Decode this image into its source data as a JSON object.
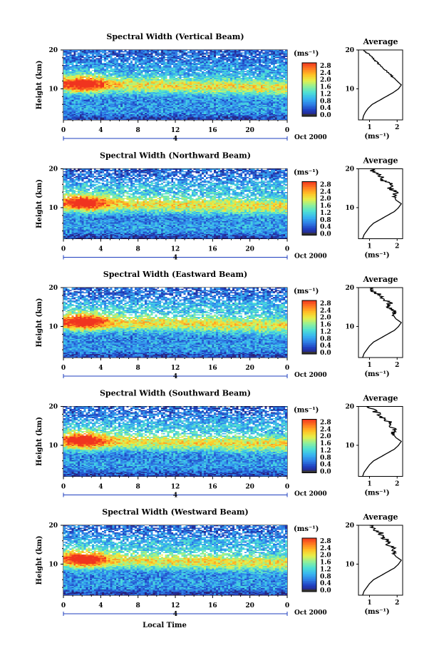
{
  "chart_data": [
    {
      "type": "heatmap",
      "title": "Spectral Width (Vertical Beam)",
      "ylabel": "Height (km)",
      "x_ticks": [
        "0",
        "4",
        "8",
        "12",
        "16",
        "20",
        "0"
      ],
      "xlim": [
        0,
        24
      ],
      "ylim": [
        2,
        20
      ],
      "y_ticks": [
        "20",
        "10"
      ],
      "date_label": "Oct 2000",
      "day_marker": "4",
      "colorbar": {
        "unit": "(ms⁻¹)",
        "ticks": [
          "2.8",
          "2.4",
          "2.0",
          "1.6",
          "1.2",
          "0.8",
          "0.4",
          "0.0"
        ],
        "range": [
          0,
          3.0
        ]
      },
      "average": {
        "title": "Average",
        "xlabel": "(ms⁻¹)",
        "x_ticks": [
          "1",
          "2"
        ],
        "xlim": [
          0.6,
          2.2
        ],
        "y_ticks": [
          "20",
          "10"
        ],
        "profile": [
          [
            2,
            0.75
          ],
          [
            3,
            0.78
          ],
          [
            4,
            0.85
          ],
          [
            5,
            0.95
          ],
          [
            6,
            1.1
          ],
          [
            7,
            1.35
          ],
          [
            8,
            1.6
          ],
          [
            9,
            1.85
          ],
          [
            10,
            2.05
          ],
          [
            11,
            2.15
          ],
          [
            12,
            2.0
          ],
          [
            13,
            1.85
          ],
          [
            14,
            1.7
          ],
          [
            15,
            1.55
          ],
          [
            16,
            1.4
          ],
          [
            17,
            1.25
          ],
          [
            18,
            1.1
          ],
          [
            19,
            0.95
          ],
          [
            20,
            0.8
          ]
        ]
      }
    },
    {
      "type": "heatmap",
      "title": "Spectral Width (Northward Beam)",
      "ylabel": "Height (km)",
      "x_ticks": [
        "0",
        "4",
        "8",
        "12",
        "16",
        "20",
        "0"
      ],
      "xlim": [
        0,
        24
      ],
      "ylim": [
        2,
        20
      ],
      "y_ticks": [
        "20",
        "10"
      ],
      "date_label": "Oct 2000",
      "day_marker": "4",
      "colorbar": {
        "unit": "(ms⁻¹)",
        "ticks": [
          "2.8",
          "2.4",
          "2.0",
          "1.6",
          "1.2",
          "0.8",
          "0.4",
          "0.0"
        ],
        "range": [
          0,
          3.0
        ]
      },
      "average": {
        "title": "Average",
        "xlabel": "(ms⁻¹)",
        "x_ticks": [
          "1",
          "2"
        ],
        "xlim": [
          0.6,
          2.2
        ],
        "y_ticks": [
          "20",
          "10"
        ],
        "profile": [
          [
            2,
            0.75
          ],
          [
            3,
            0.8
          ],
          [
            4,
            0.9
          ],
          [
            5,
            1.0
          ],
          [
            6,
            1.15
          ],
          [
            7,
            1.4
          ],
          [
            8,
            1.65
          ],
          [
            9,
            1.9
          ],
          [
            10,
            2.05
          ],
          [
            11,
            2.15
          ],
          [
            12,
            1.95
          ],
          [
            13,
            1.9
          ],
          [
            14,
            1.95
          ],
          [
            15,
            1.75
          ],
          [
            16,
            1.8
          ],
          [
            17,
            1.5
          ],
          [
            18,
            1.45
          ],
          [
            19,
            1.2
          ],
          [
            20,
            1.05
          ]
        ]
      }
    },
    {
      "type": "heatmap",
      "title": "Spectral Width (Eastward Beam)",
      "ylabel": "Height (km)",
      "x_ticks": [
        "0",
        "4",
        "8",
        "12",
        "16",
        "20",
        "0"
      ],
      "xlim": [
        0,
        24
      ],
      "ylim": [
        2,
        20
      ],
      "y_ticks": [
        "20",
        "10"
      ],
      "date_label": "Oct 2000",
      "day_marker": "4",
      "colorbar": {
        "unit": "(ms⁻¹)",
        "ticks": [
          "2.8",
          "2.4",
          "2.0",
          "1.6",
          "1.2",
          "0.8",
          "0.4",
          "0.0"
        ],
        "range": [
          0,
          3.0
        ]
      },
      "average": {
        "title": "Average",
        "xlabel": "(ms⁻¹)",
        "x_ticks": [
          "1",
          "2"
        ],
        "xlim": [
          0.6,
          2.2
        ],
        "y_ticks": [
          "20",
          "10"
        ],
        "profile": [
          [
            2,
            0.75
          ],
          [
            3,
            0.8
          ],
          [
            4,
            0.9
          ],
          [
            5,
            1.0
          ],
          [
            6,
            1.15
          ],
          [
            7,
            1.4
          ],
          [
            8,
            1.65
          ],
          [
            9,
            1.9
          ],
          [
            10,
            2.05
          ],
          [
            11,
            2.15
          ],
          [
            12,
            1.95
          ],
          [
            13,
            1.85
          ],
          [
            14,
            1.9
          ],
          [
            15,
            1.7
          ],
          [
            16,
            1.75
          ],
          [
            17,
            1.45
          ],
          [
            18,
            1.4
          ],
          [
            19,
            1.15
          ],
          [
            20,
            1.0
          ]
        ]
      }
    },
    {
      "type": "heatmap",
      "title": "Spectral Width (Southward Beam)",
      "ylabel": "Height (km)",
      "x_ticks": [
        "0",
        "4",
        "8",
        "12",
        "16",
        "20",
        "0"
      ],
      "xlim": [
        0,
        24
      ],
      "ylim": [
        2,
        20
      ],
      "y_ticks": [
        "20",
        "10"
      ],
      "date_label": "Oct 2000",
      "day_marker": "4",
      "colorbar": {
        "unit": "(ms⁻¹)",
        "ticks": [
          "2.8",
          "2.4",
          "2.0",
          "1.6",
          "1.2",
          "0.8",
          "0.4",
          "0.0"
        ],
        "range": [
          0,
          3.0
        ]
      },
      "average": {
        "title": "Average",
        "xlabel": "(ms⁻¹)",
        "x_ticks": [
          "1",
          "2"
        ],
        "xlim": [
          0.6,
          2.2
        ],
        "y_ticks": [
          "20",
          "10"
        ],
        "profile": [
          [
            2,
            0.75
          ],
          [
            3,
            0.8
          ],
          [
            4,
            0.9
          ],
          [
            5,
            1.0
          ],
          [
            6,
            1.15
          ],
          [
            7,
            1.4
          ],
          [
            8,
            1.65
          ],
          [
            9,
            1.9
          ],
          [
            10,
            2.05
          ],
          [
            11,
            2.15
          ],
          [
            12,
            1.95
          ],
          [
            13,
            1.85
          ],
          [
            14,
            1.9
          ],
          [
            15,
            1.7
          ],
          [
            16,
            1.7
          ],
          [
            17,
            1.45
          ],
          [
            18,
            1.35
          ],
          [
            19,
            1.15
          ],
          [
            20,
            1.0
          ]
        ]
      }
    },
    {
      "type": "heatmap",
      "title": "Spectral Width (Westward Beam)",
      "ylabel": "Height (km)",
      "xlabel": "Local Time",
      "x_ticks": [
        "0",
        "4",
        "8",
        "12",
        "16",
        "20",
        "0"
      ],
      "xlim": [
        0,
        24
      ],
      "ylim": [
        2,
        20
      ],
      "y_ticks": [
        "20",
        "10"
      ],
      "date_label": "Oct 2000",
      "day_marker": "4",
      "colorbar": {
        "unit": "(ms⁻¹)",
        "ticks": [
          "2.8",
          "2.4",
          "2.0",
          "1.6",
          "1.2",
          "0.8",
          "0.4",
          "0.0"
        ],
        "range": [
          0,
          3.0
        ]
      },
      "average": {
        "title": "Average",
        "xlabel": "(ms⁻¹)",
        "x_ticks": [
          "1",
          "2"
        ],
        "xlim": [
          0.6,
          2.2
        ],
        "y_ticks": [
          "20",
          "10"
        ],
        "profile": [
          [
            2,
            0.75
          ],
          [
            3,
            0.8
          ],
          [
            4,
            0.9
          ],
          [
            5,
            1.0
          ],
          [
            6,
            1.15
          ],
          [
            7,
            1.4
          ],
          [
            8,
            1.65
          ],
          [
            9,
            1.9
          ],
          [
            10,
            2.05
          ],
          [
            11,
            2.15
          ],
          [
            12,
            1.95
          ],
          [
            13,
            1.85
          ],
          [
            14,
            1.9
          ],
          [
            15,
            1.7
          ],
          [
            16,
            1.7
          ],
          [
            17,
            1.45
          ],
          [
            18,
            1.4
          ],
          [
            19,
            1.15
          ],
          [
            20,
            1.0
          ]
        ]
      }
    }
  ],
  "colors": {
    "scale": [
      "#2b1f6e",
      "#1f3fbf",
      "#2f7fe6",
      "#38b6f0",
      "#4fe0d4",
      "#8ff09a",
      "#e6f04a",
      "#ffc125",
      "#ff7a22",
      "#f0341f"
    ]
  }
}
